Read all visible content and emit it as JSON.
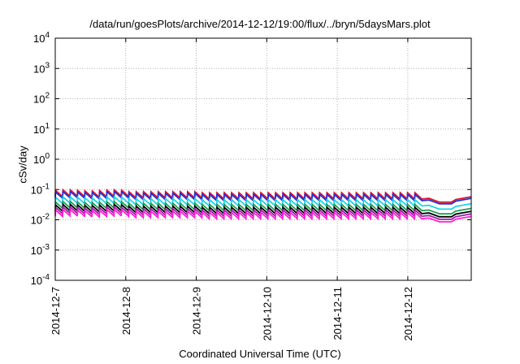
{
  "chart_data": {
    "type": "line",
    "title": "/data/run/goesPlots/archive/2014-12-12/19:00/flux/../bryn/5daysMars.plot",
    "xlabel": "Coordinated Universal Time (UTC)",
    "ylabel": "cSv/day",
    "yscale": "log",
    "ylim": [
      0.0001,
      10000
    ],
    "yticks": [
      {
        "value": 0.0001,
        "base": "10",
        "exp": "-4"
      },
      {
        "value": 0.001,
        "base": "10",
        "exp": "-3"
      },
      {
        "value": 0.01,
        "base": "10",
        "exp": "-2"
      },
      {
        "value": 0.1,
        "base": "10",
        "exp": "-1"
      },
      {
        "value": 1,
        "base": "10",
        "exp": "0"
      },
      {
        "value": 10,
        "base": "10",
        "exp": "1"
      },
      {
        "value": 100,
        "base": "10",
        "exp": "2"
      },
      {
        "value": 1000,
        "base": "10",
        "exp": "3"
      },
      {
        "value": 10000,
        "base": "10",
        "exp": "4"
      }
    ],
    "xlim_days": [
      0,
      5.9
    ],
    "xticks": [
      {
        "day": 0,
        "label": "2014-12-7"
      },
      {
        "day": 1,
        "label": "2014-12-8"
      },
      {
        "day": 2,
        "label": "2014-12-9"
      },
      {
        "day": 3,
        "label": "2014-12-10"
      },
      {
        "day": 4,
        "label": "2014-12-11"
      },
      {
        "day": 5,
        "label": "2014-12-12"
      }
    ],
    "grid": true,
    "legend": "none",
    "series": [
      {
        "color": "#e8102a",
        "base": 0.085
      },
      {
        "color": "#2233d6",
        "base": 0.075
      },
      {
        "color": "#1fd3e6",
        "base": 0.05
      },
      {
        "color": "#1f9e55",
        "base": 0.035
      },
      {
        "color": "#000000",
        "base": 0.028
      },
      {
        "color": "#9b1fa8",
        "base": 0.023
      },
      {
        "color": "#ff1fd6",
        "base": 0.019
      }
    ]
  }
}
